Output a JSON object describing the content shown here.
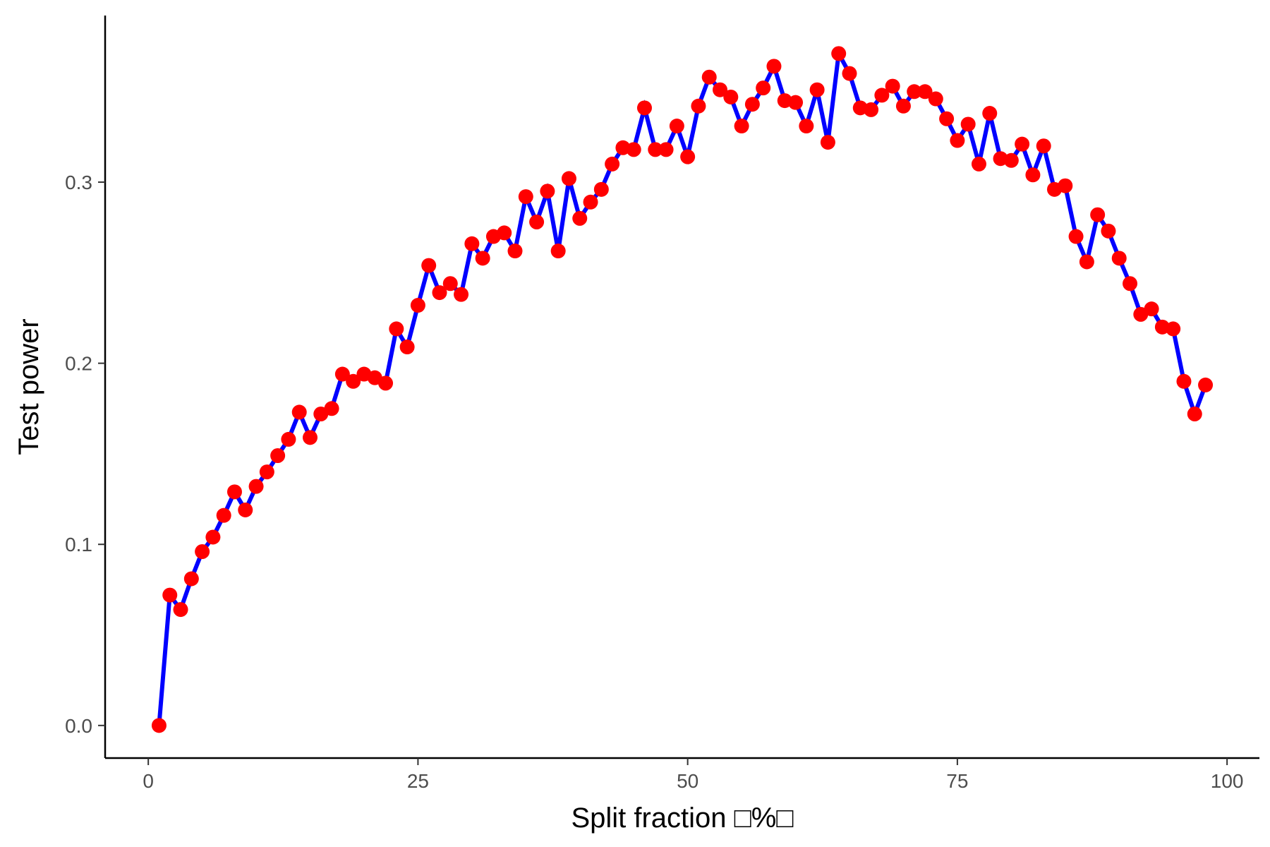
{
  "chart_data": {
    "type": "line",
    "title": "",
    "xlabel": "Split fraction □%□",
    "ylabel": "Test power",
    "xlim": [
      -4,
      103
    ],
    "ylim": [
      -0.018,
      0.392
    ],
    "xticks": [
      0,
      25,
      50,
      75,
      100
    ],
    "xtick_labels": [
      "0",
      "25",
      "50",
      "75",
      "100"
    ],
    "yticks": [
      0.0,
      0.1,
      0.2,
      0.3
    ],
    "ytick_labels": [
      "0.0",
      "0.1",
      "0.2",
      "0.3"
    ],
    "grid": false,
    "legend": "none",
    "line_color": "#0000ff",
    "marker_color": "#ff0000",
    "series": [
      {
        "x": [
          1,
          2,
          3,
          4,
          5,
          6,
          7,
          8,
          9,
          10,
          11,
          12,
          13,
          14,
          15,
          16,
          17,
          18,
          19,
          20,
          21,
          22,
          23,
          24,
          25,
          26,
          27,
          28,
          29,
          30,
          31,
          32,
          33,
          34,
          35,
          36,
          37,
          38,
          39,
          40,
          41,
          42,
          43,
          44,
          45,
          46,
          47,
          48,
          49,
          50,
          51,
          52,
          53,
          54,
          55,
          56,
          57,
          58,
          59,
          60,
          61,
          62,
          63,
          64,
          65,
          66,
          67,
          68,
          69,
          70,
          71,
          72,
          73,
          74,
          75,
          76,
          77,
          78,
          79,
          80,
          81,
          82,
          83,
          84,
          85,
          86,
          87,
          88,
          89,
          90,
          91,
          92,
          93,
          94,
          95,
          96,
          97,
          98
        ],
        "y": [
          0.0,
          0.072,
          0.064,
          0.081,
          0.096,
          0.104,
          0.116,
          0.129,
          0.119,
          0.132,
          0.14,
          0.149,
          0.158,
          0.173,
          0.159,
          0.172,
          0.175,
          0.194,
          0.19,
          0.194,
          0.192,
          0.189,
          0.219,
          0.209,
          0.232,
          0.254,
          0.239,
          0.244,
          0.238,
          0.266,
          0.258,
          0.27,
          0.272,
          0.262,
          0.292,
          0.278,
          0.295,
          0.262,
          0.302,
          0.28,
          0.289,
          0.296,
          0.31,
          0.319,
          0.318,
          0.341,
          0.318,
          0.318,
          0.331,
          0.314,
          0.342,
          0.358,
          0.351,
          0.347,
          0.331,
          0.343,
          0.352,
          0.364,
          0.345,
          0.344,
          0.331,
          0.351,
          0.322,
          0.371,
          0.36,
          0.341,
          0.34,
          0.348,
          0.353,
          0.342,
          0.35,
          0.35,
          0.346,
          0.335,
          0.323,
          0.332,
          0.31,
          0.338,
          0.313,
          0.312,
          0.321,
          0.304,
          0.32,
          0.296,
          0.298,
          0.27,
          0.256,
          0.282,
          0.273,
          0.258,
          0.244,
          0.227,
          0.23,
          0.22,
          0.219,
          0.19,
          0.172,
          0.188
        ]
      }
    ]
  }
}
